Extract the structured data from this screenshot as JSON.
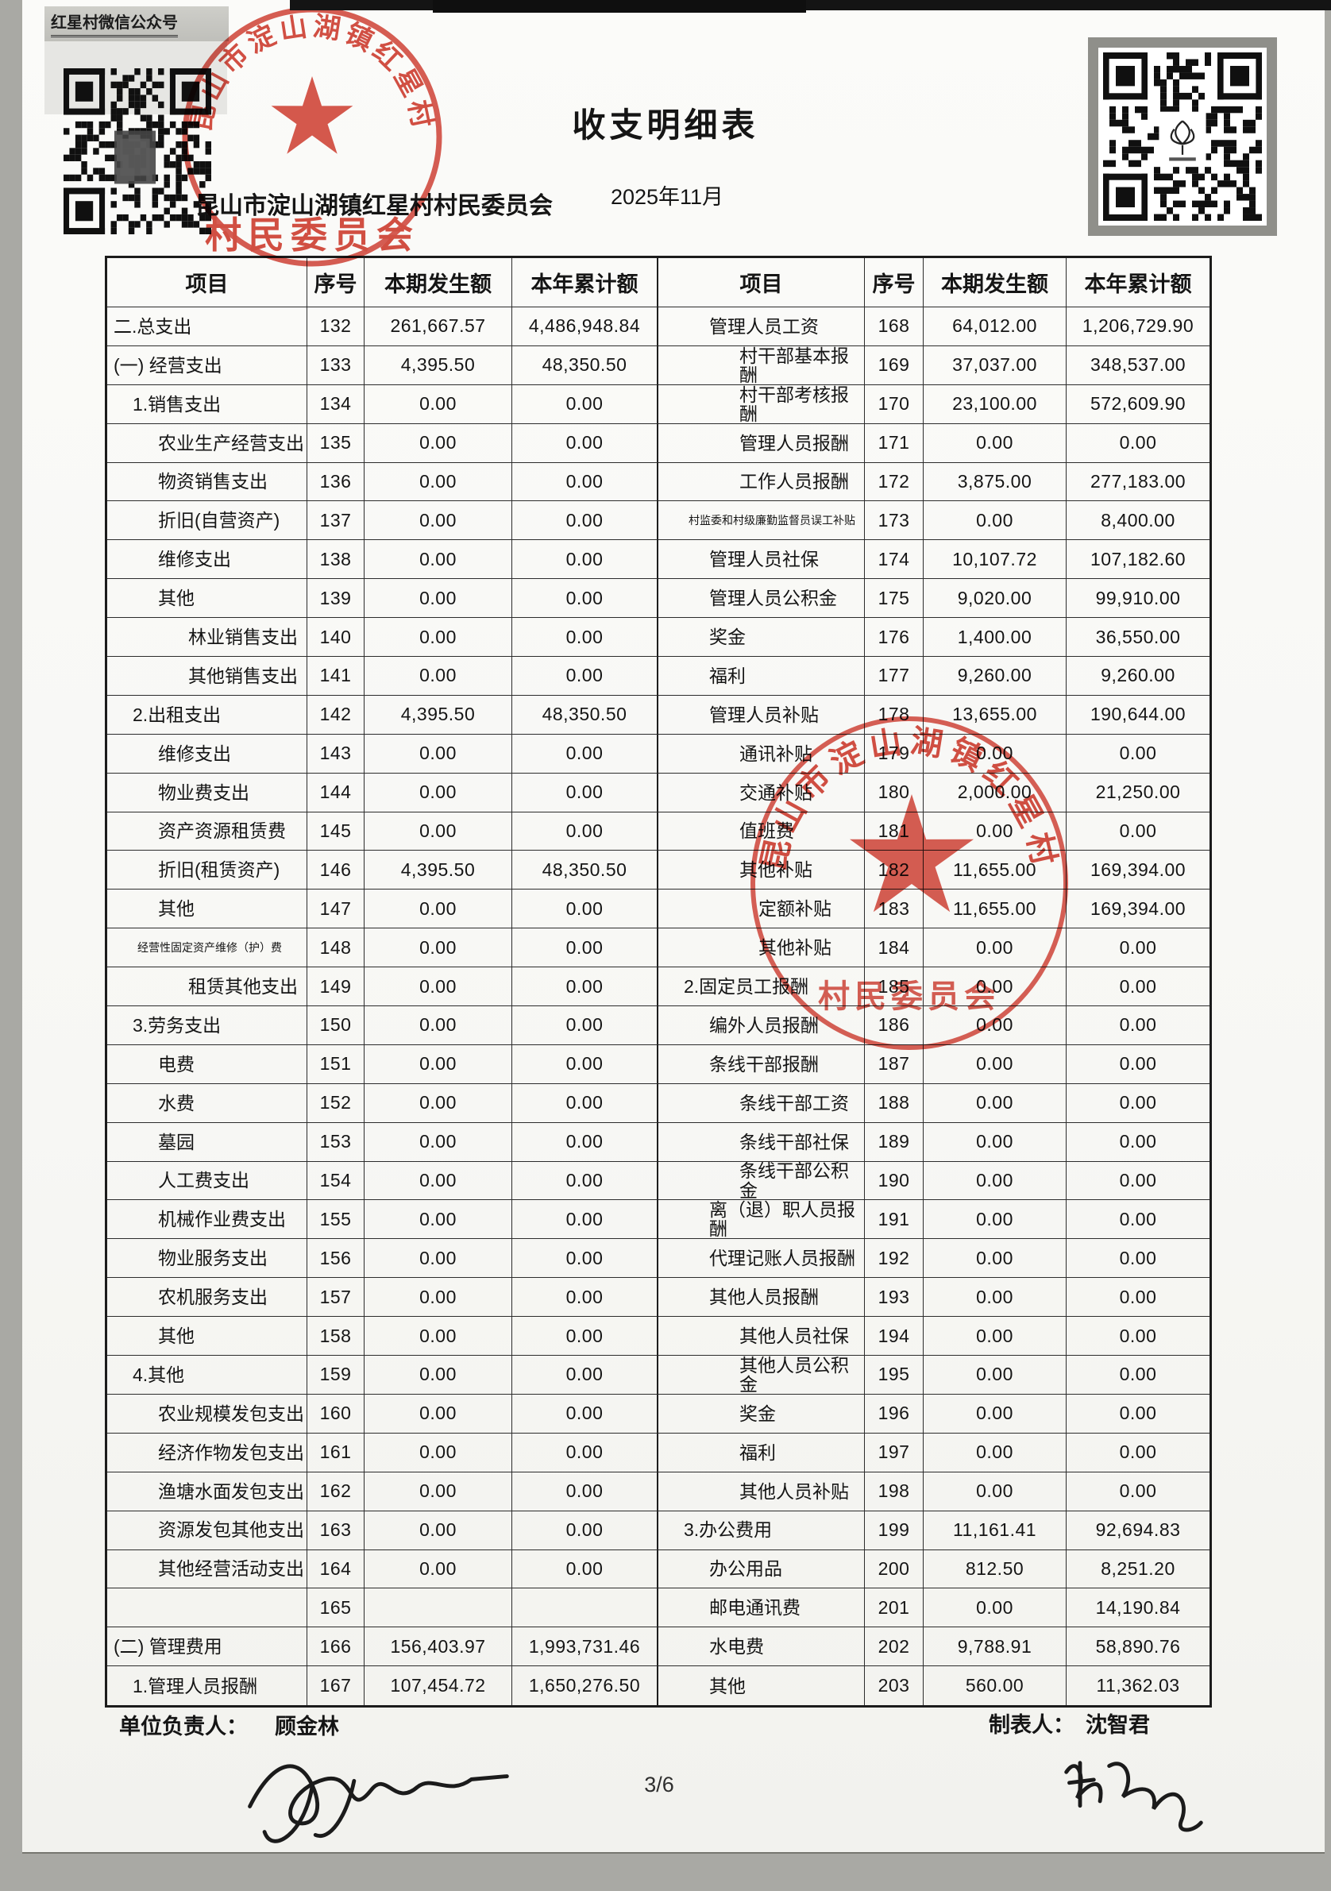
{
  "header": {
    "wechat_label": "红星村微信公众号",
    "title": "收支明细表",
    "unit_name": "昆山市淀山湖镇红星村村民委员会",
    "period": "2025年11月"
  },
  "stamp": {
    "arc_text": "昆山市淀山湖镇红星村",
    "bottom_text": "村民委员会",
    "color": "#d0372a"
  },
  "table": {
    "headers": [
      "项目",
      "序号",
      "本期发生额",
      "本年累计额",
      "项目",
      "序号",
      "本期发生额",
      "本年累计额"
    ],
    "rows": [
      [
        "二.总支出",
        0,
        "132",
        "261,667.57",
        "4,486,948.84",
        "管理人员工资",
        2,
        "168",
        "64,012.00",
        "1,206,729.90"
      ],
      [
        "(一) 经营支出",
        0,
        "133",
        "4,395.50",
        "48,350.50",
        "村干部基本报酬",
        3,
        "169",
        "37,037.00",
        "348,537.00"
      ],
      [
        "1.销售支出",
        1,
        "134",
        "0.00",
        "0.00",
        "村干部考核报酬",
        3,
        "170",
        "23,100.00",
        "572,609.90"
      ],
      [
        "农业生产经营支出",
        2,
        "135",
        "0.00",
        "0.00",
        "管理人员报酬",
        3,
        "171",
        "0.00",
        "0.00"
      ],
      [
        "物资销售支出",
        2,
        "136",
        "0.00",
        "0.00",
        "工作人员报酬",
        3,
        "172",
        "3,875.00",
        "277,183.00"
      ],
      [
        "折旧(自营资产)",
        2,
        "137",
        "0.00",
        "0.00",
        "村监委和村级廉勤监督员误工补贴",
        2,
        "173",
        "0.00",
        "8,400.00"
      ],
      [
        "维修支出",
        2,
        "138",
        "0.00",
        "0.00",
        "管理人员社保",
        2,
        "174",
        "10,107.72",
        "107,182.60"
      ],
      [
        "其他",
        2,
        "139",
        "0.00",
        "0.00",
        "管理人员公积金",
        2,
        "175",
        "9,020.00",
        "99,910.00"
      ],
      [
        "林业销售支出",
        3,
        "140",
        "0.00",
        "0.00",
        "奖金",
        2,
        "176",
        "1,400.00",
        "36,550.00"
      ],
      [
        "其他销售支出",
        3,
        "141",
        "0.00",
        "0.00",
        "福利",
        2,
        "177",
        "9,260.00",
        "9,260.00"
      ],
      [
        "2.出租支出",
        1,
        "142",
        "4,395.50",
        "48,350.50",
        "管理人员补贴",
        2,
        "178",
        "13,655.00",
        "190,644.00"
      ],
      [
        "维修支出",
        2,
        "143",
        "0.00",
        "0.00",
        "通讯补贴",
        3,
        "179",
        "0.00",
        "0.00"
      ],
      [
        "物业费支出",
        2,
        "144",
        "0.00",
        "0.00",
        "交通补贴",
        3,
        "180",
        "2,000.00",
        "21,250.00"
      ],
      [
        "资产资源租赁费",
        2,
        "145",
        "0.00",
        "0.00",
        "值班费",
        3,
        "181",
        "0.00",
        "0.00"
      ],
      [
        "折旧(租赁资产)",
        2,
        "146",
        "4,395.50",
        "48,350.50",
        "其他补贴",
        3,
        "182",
        "11,655.00",
        "169,394.00"
      ],
      [
        "其他",
        2,
        "147",
        "0.00",
        "0.00",
        "定额补贴",
        4,
        "183",
        "11,655.00",
        "169,394.00"
      ],
      [
        "经营性固定资产维修（护）费",
        2,
        "148",
        "0.00",
        "0.00",
        "其他补贴",
        4,
        "184",
        "0.00",
        "0.00"
      ],
      [
        "租赁其他支出",
        3,
        "149",
        "0.00",
        "0.00",
        "2.固定员工报酬",
        1,
        "185",
        "0.00",
        "0.00"
      ],
      [
        "3.劳务支出",
        1,
        "150",
        "0.00",
        "0.00",
        "编外人员报酬",
        2,
        "186",
        "0.00",
        "0.00"
      ],
      [
        "电费",
        2,
        "151",
        "0.00",
        "0.00",
        "条线干部报酬",
        2,
        "187",
        "0.00",
        "0.00"
      ],
      [
        "水费",
        2,
        "152",
        "0.00",
        "0.00",
        "条线干部工资",
        3,
        "188",
        "0.00",
        "0.00"
      ],
      [
        "墓园",
        2,
        "153",
        "0.00",
        "0.00",
        "条线干部社保",
        3,
        "189",
        "0.00",
        "0.00"
      ],
      [
        "人工费支出",
        2,
        "154",
        "0.00",
        "0.00",
        "条线干部公积金",
        3,
        "190",
        "0.00",
        "0.00"
      ],
      [
        "机械作业费支出",
        2,
        "155",
        "0.00",
        "0.00",
        "离（退）职人员报酬",
        2,
        "191",
        "0.00",
        "0.00"
      ],
      [
        "物业服务支出",
        2,
        "156",
        "0.00",
        "0.00",
        "代理记账人员报酬",
        2,
        "192",
        "0.00",
        "0.00"
      ],
      [
        "农机服务支出",
        2,
        "157",
        "0.00",
        "0.00",
        "其他人员报酬",
        2,
        "193",
        "0.00",
        "0.00"
      ],
      [
        "其他",
        2,
        "158",
        "0.00",
        "0.00",
        "其他人员社保",
        3,
        "194",
        "0.00",
        "0.00"
      ],
      [
        "4.其他",
        1,
        "159",
        "0.00",
        "0.00",
        "其他人员公积金",
        3,
        "195",
        "0.00",
        "0.00"
      ],
      [
        "农业规模发包支出",
        2,
        "160",
        "0.00",
        "0.00",
        "奖金",
        3,
        "196",
        "0.00",
        "0.00"
      ],
      [
        "经济作物发包支出",
        2,
        "161",
        "0.00",
        "0.00",
        "福利",
        3,
        "197",
        "0.00",
        "0.00"
      ],
      [
        "渔塘水面发包支出",
        2,
        "162",
        "0.00",
        "0.00",
        "其他人员补贴",
        3,
        "198",
        "0.00",
        "0.00"
      ],
      [
        "资源发包其他支出",
        2,
        "163",
        "0.00",
        "0.00",
        "3.办公费用",
        1,
        "199",
        "11,161.41",
        "92,694.83"
      ],
      [
        "其他经营活动支出",
        2,
        "164",
        "0.00",
        "0.00",
        "办公用品",
        2,
        "200",
        "812.50",
        "8,251.20"
      ],
      [
        "",
        0,
        "165",
        "",
        "",
        "邮电通讯费",
        2,
        "201",
        "0.00",
        "14,190.84"
      ],
      [
        "(二) 管理费用",
        0,
        "166",
        "156,403.97",
        "1,993,731.46",
        "水电费",
        2,
        "202",
        "9,788.91",
        "58,890.76"
      ],
      [
        "1.管理人员报酬",
        1,
        "167",
        "107,454.72",
        "1,650,276.50",
        "其他",
        2,
        "203",
        "560.00",
        "11,362.03"
      ]
    ]
  },
  "footer": {
    "unit_head_label": "单位负责人：",
    "unit_head_name": "顾金林",
    "preparer_label": "制表人：",
    "preparer_name": "沈智君",
    "page_number": "3/6"
  }
}
